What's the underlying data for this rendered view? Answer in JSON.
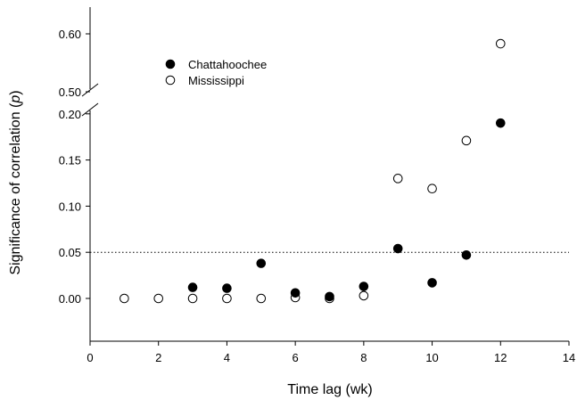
{
  "chart_data": {
    "type": "scatter",
    "title": "",
    "xlabel": "Time lag (wk)",
    "ylabel_main": "Significance of correlation (",
    "ylabel_italic": "p",
    "ylabel_end": ")",
    "xlim": [
      0,
      14
    ],
    "x_ticks": [
      "0",
      "2",
      "4",
      "6",
      "8",
      "10",
      "12",
      "14"
    ],
    "y_lower_ticks": [
      "0.00",
      "0.05",
      "0.10",
      "0.15",
      "0.20"
    ],
    "y_upper_ticks": [
      "0.50",
      "0.60"
    ],
    "y_axis_break": [
      0.2,
      0.5
    ],
    "reference_line": {
      "y": 0.05,
      "style": "dotted"
    },
    "grid": false,
    "legend_position": "top-left",
    "series": [
      {
        "name": "Chattahoochee",
        "marker": "filled-circle",
        "points": [
          {
            "x": 3,
            "y": 0.012
          },
          {
            "x": 4,
            "y": 0.011
          },
          {
            "x": 5,
            "y": 0.038
          },
          {
            "x": 6,
            "y": 0.006
          },
          {
            "x": 7,
            "y": 0.002
          },
          {
            "x": 8,
            "y": 0.013
          },
          {
            "x": 9,
            "y": 0.054
          },
          {
            "x": 10,
            "y": 0.017
          },
          {
            "x": 11,
            "y": 0.047
          },
          {
            "x": 12,
            "y": 0.19
          }
        ]
      },
      {
        "name": "Mississippi",
        "marker": "open-circle",
        "points": [
          {
            "x": 1,
            "y": 0.0
          },
          {
            "x": 2,
            "y": 0.0
          },
          {
            "x": 3,
            "y": 0.0
          },
          {
            "x": 4,
            "y": 0.0
          },
          {
            "x": 5,
            "y": 0.0
          },
          {
            "x": 6,
            "y": 0.001
          },
          {
            "x": 7,
            "y": 0.0
          },
          {
            "x": 8,
            "y": 0.003
          },
          {
            "x": 9,
            "y": 0.13
          },
          {
            "x": 10,
            "y": 0.119
          },
          {
            "x": 11,
            "y": 0.171
          },
          {
            "x": 12,
            "y": 0.583
          }
        ]
      }
    ]
  },
  "colors": {
    "axis": "#000000",
    "filled_marker": "#000000",
    "open_marker_fill": "#ffffff"
  }
}
